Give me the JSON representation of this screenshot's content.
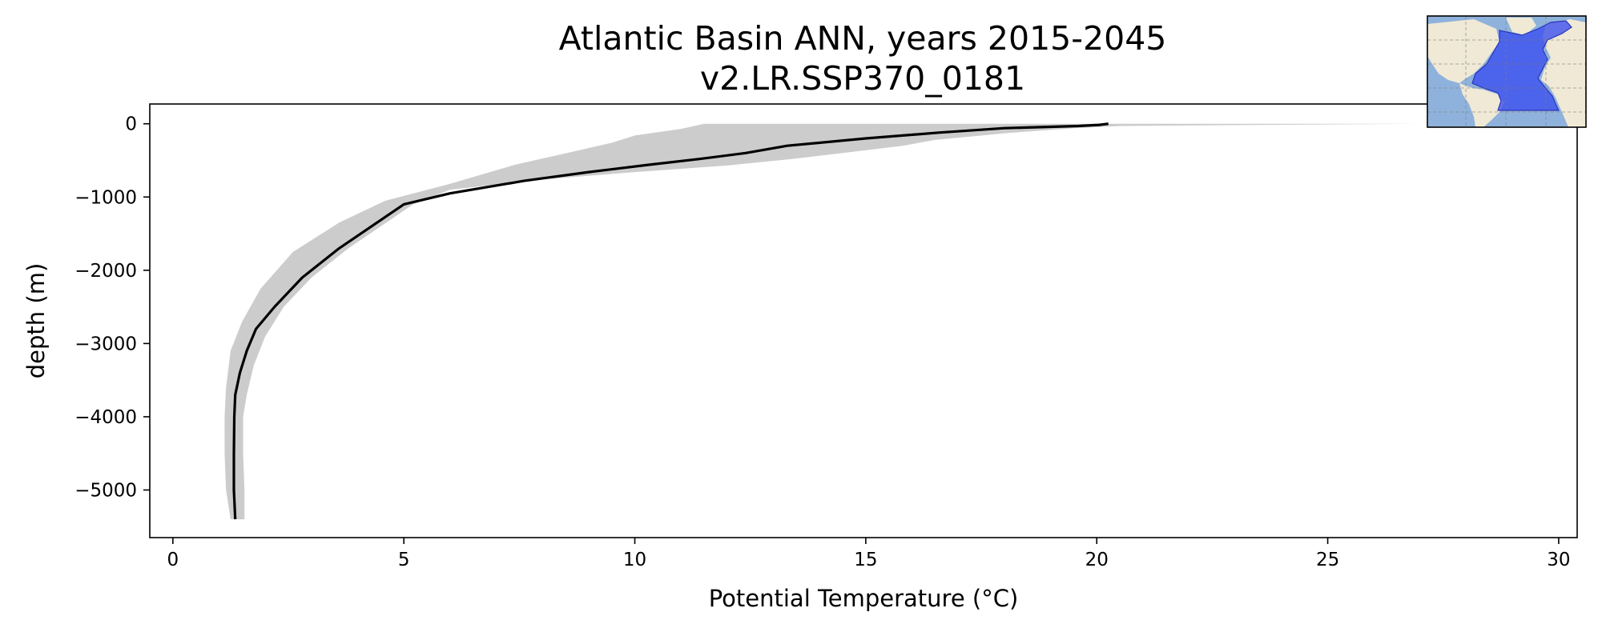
{
  "chart_data": {
    "type": "line",
    "title": "Atlantic Basin ANN, years 2015-2045",
    "subtitle": "v2.LR.SSP370_0181",
    "xlabel": "Potential Temperature (°C)",
    "ylabel": "depth (m)",
    "xlim": [
      -0.5,
      30.4
    ],
    "ylim": [
      -5650,
      270
    ],
    "xticks": [
      0,
      5,
      10,
      15,
      20,
      25,
      30
    ],
    "yticks": [
      0,
      -1000,
      -2000,
      -3000,
      -4000,
      -5000
    ],
    "xtick_labels": [
      "0",
      "5",
      "10",
      "15",
      "20",
      "25",
      "30"
    ],
    "ytick_labels": [
      "0",
      "−1000",
      "−2000",
      "−3000",
      "−4000",
      "−5000"
    ],
    "grid": false,
    "series": [
      {
        "kind": "line",
        "color": "#000000",
        "x": [
          20.25,
          20.05,
          19.6,
          18.0,
          16.6,
          15.0,
          13.3,
          12.4,
          11.4,
          10.3,
          9.0,
          7.6,
          6.0,
          5.0,
          4.3,
          3.6,
          2.8,
          2.2,
          1.8,
          1.6,
          1.45,
          1.35,
          1.33,
          1.32,
          1.32,
          1.35
        ],
        "y": [
          0,
          -15,
          -30,
          -60,
          -120,
          -200,
          -300,
          -400,
          -480,
          -560,
          -660,
          -780,
          -950,
          -1100,
          -1400,
          -1700,
          -2100,
          -2500,
          -2800,
          -3100,
          -3400,
          -3700,
          -4000,
          -4500,
          -5000,
          -5400
        ]
      },
      {
        "kind": "band",
        "color": "#cccccc",
        "upper_x": [
          27.0,
          20.5,
          19.5,
          18.0,
          16.5,
          15.8,
          14.5,
          13.4,
          12.0,
          10.0,
          8.0,
          6.0,
          5.2,
          4.5,
          3.8,
          3.0,
          2.4,
          2.0,
          1.75,
          1.6,
          1.52,
          1.52,
          1.55,
          1.55
        ],
        "upper_y": [
          0,
          -30,
          -60,
          -130,
          -220,
          -300,
          -400,
          -480,
          -570,
          -660,
          -760,
          -900,
          -1100,
          -1400,
          -1700,
          -2100,
          -2500,
          -2900,
          -3300,
          -3700,
          -4000,
          -4500,
          -5000,
          -5400
        ],
        "lower_x": [
          11.5,
          11.0,
          10.0,
          9.5,
          8.8,
          7.4,
          6.0,
          4.6,
          3.6,
          2.6,
          1.9,
          1.5,
          1.25,
          1.15,
          1.12,
          1.12,
          1.15,
          1.25
        ],
        "lower_y": [
          0,
          -70,
          -160,
          -260,
          -360,
          -560,
          -820,
          -1050,
          -1350,
          -1750,
          -2250,
          -2700,
          -3100,
          -3600,
          -4000,
          -4500,
          -5000,
          -5400
        ]
      }
    ],
    "inset": {
      "type": "map",
      "region": "Atlantic Basin",
      "highlight_color": "#3a4df0",
      "land_color": "#efe9d6",
      "ocean_color": "#8fb2dc"
    }
  }
}
